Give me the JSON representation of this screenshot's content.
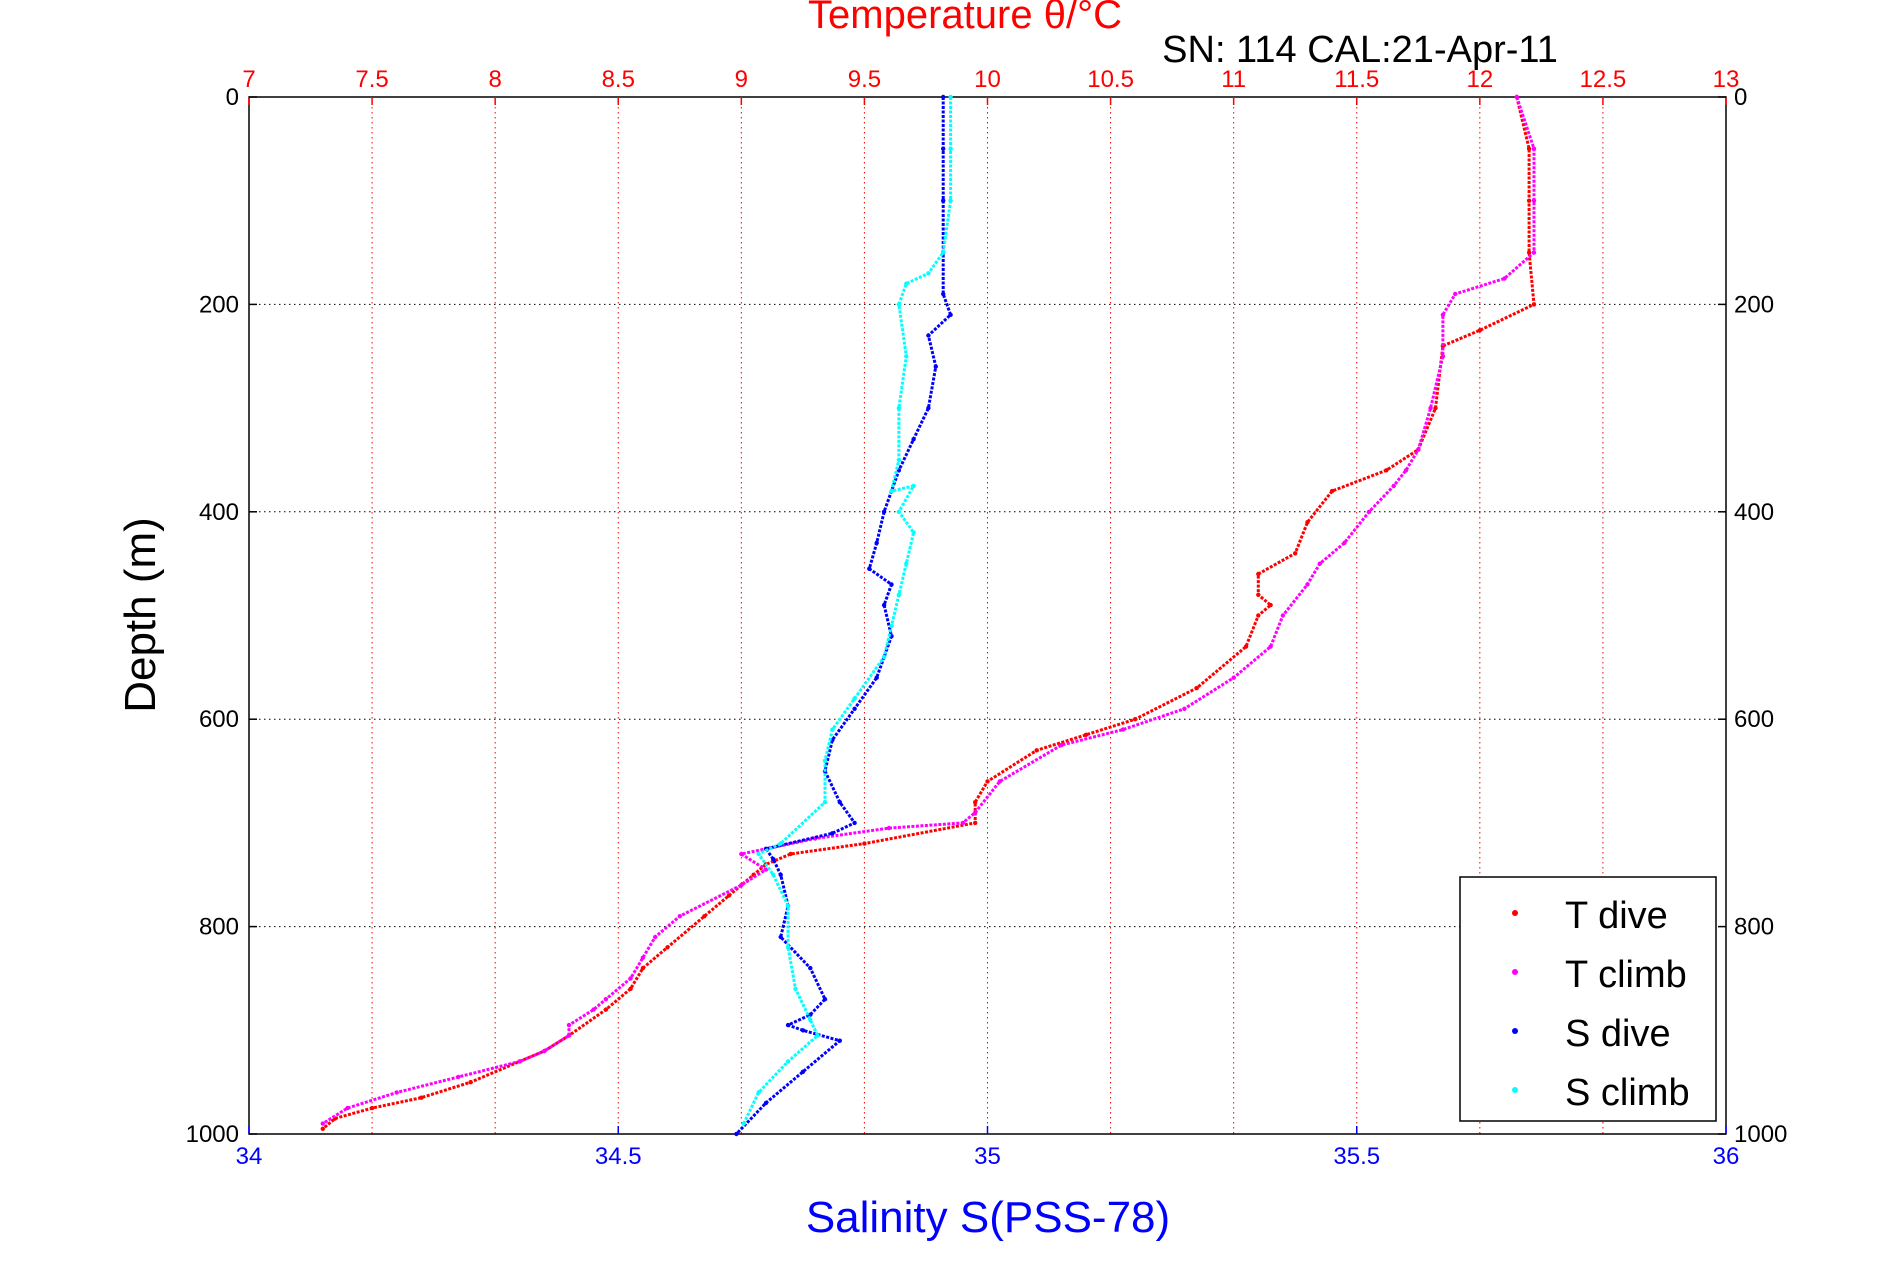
{
  "chart_data": {
    "type": "scatter",
    "title": "Temperature θ/°C",
    "annotation": "SN: 114  CAL:21-Apr-11",
    "ylabel": "Depth (m)",
    "xlabel_bottom": "Salinity S(PSS-78)",
    "xlabel_top": "",
    "y_axis": {
      "range": [
        0,
        1000
      ],
      "reversed": true,
      "ticks": [
        0,
        200,
        400,
        600,
        800,
        1000
      ],
      "tick_labels": [
        "0",
        "200",
        "400",
        "600",
        "800",
        "1000"
      ]
    },
    "x_bottom": {
      "name": "Salinity",
      "range": [
        34,
        36
      ],
      "ticks": [
        34,
        34.5,
        35,
        35.5,
        36
      ],
      "tick_labels": [
        "34",
        "34.5",
        "35",
        "35.5",
        "36"
      ],
      "color": "#0000ff"
    },
    "x_top": {
      "name": "Temperature",
      "range": [
        7,
        13
      ],
      "ticks": [
        7,
        7.5,
        8,
        8.5,
        9,
        9.5,
        10,
        10.5,
        11,
        11.5,
        12,
        12.5,
        13
      ],
      "tick_labels": [
        "7",
        "7.5",
        "8",
        "8.5",
        "9",
        "9.5",
        "10",
        "10.5",
        "11",
        "11.5",
        "12",
        "12.5",
        "13"
      ],
      "color": "#ff0000"
    },
    "grid": true,
    "legend_position": "bottom-right",
    "series": [
      {
        "name": "T dive",
        "axis": "top",
        "color": "#ff0000",
        "points": [
          [
            12.15,
            0
          ],
          [
            12.2,
            50
          ],
          [
            12.2,
            100
          ],
          [
            12.2,
            150
          ],
          [
            12.22,
            200
          ],
          [
            12.0,
            225
          ],
          [
            11.85,
            240
          ],
          [
            11.82,
            300
          ],
          [
            11.75,
            340
          ],
          [
            11.62,
            360
          ],
          [
            11.4,
            380
          ],
          [
            11.3,
            410
          ],
          [
            11.25,
            440
          ],
          [
            11.1,
            460
          ],
          [
            11.1,
            480
          ],
          [
            11.15,
            490
          ],
          [
            11.1,
            500
          ],
          [
            11.05,
            530
          ],
          [
            10.85,
            570
          ],
          [
            10.6,
            600
          ],
          [
            10.4,
            615
          ],
          [
            10.2,
            630
          ],
          [
            10.0,
            660
          ],
          [
            9.95,
            680
          ],
          [
            9.95,
            700
          ],
          [
            9.5,
            720
          ],
          [
            9.2,
            730
          ],
          [
            9.1,
            740
          ],
          [
            9.05,
            750
          ],
          [
            8.95,
            770
          ],
          [
            8.85,
            790
          ],
          [
            8.7,
            820
          ],
          [
            8.6,
            840
          ],
          [
            8.55,
            860
          ],
          [
            8.45,
            880
          ],
          [
            8.3,
            905
          ],
          [
            8.2,
            920
          ],
          [
            8.1,
            930
          ],
          [
            7.9,
            950
          ],
          [
            7.7,
            965
          ],
          [
            7.5,
            975
          ],
          [
            7.35,
            985
          ],
          [
            7.3,
            995
          ]
        ]
      },
      {
        "name": "T climb",
        "axis": "top",
        "color": "#ff00ff",
        "points": [
          [
            12.15,
            0
          ],
          [
            12.22,
            50
          ],
          [
            12.22,
            100
          ],
          [
            12.22,
            150
          ],
          [
            12.1,
            175
          ],
          [
            11.9,
            190
          ],
          [
            11.85,
            210
          ],
          [
            11.85,
            250
          ],
          [
            11.8,
            300
          ],
          [
            11.75,
            340
          ],
          [
            11.7,
            360
          ],
          [
            11.65,
            375
          ],
          [
            11.55,
            400
          ],
          [
            11.45,
            430
          ],
          [
            11.35,
            450
          ],
          [
            11.3,
            470
          ],
          [
            11.2,
            500
          ],
          [
            11.15,
            530
          ],
          [
            11.0,
            560
          ],
          [
            10.8,
            590
          ],
          [
            10.55,
            610
          ],
          [
            10.3,
            625
          ],
          [
            10.05,
            660
          ],
          [
            9.95,
            690
          ],
          [
            9.9,
            700
          ],
          [
            9.6,
            705
          ],
          [
            9.3,
            715
          ],
          [
            9.0,
            730
          ],
          [
            9.1,
            745
          ],
          [
            9.0,
            760
          ],
          [
            8.75,
            790
          ],
          [
            8.65,
            810
          ],
          [
            8.6,
            830
          ],
          [
            8.55,
            850
          ],
          [
            8.45,
            870
          ],
          [
            8.4,
            880
          ],
          [
            8.3,
            895
          ],
          [
            8.3,
            905
          ],
          [
            8.2,
            920
          ],
          [
            8.1,
            930
          ],
          [
            7.85,
            945
          ],
          [
            7.6,
            960
          ],
          [
            7.4,
            975
          ],
          [
            7.3,
            990
          ]
        ]
      },
      {
        "name": "S dive",
        "axis": "bottom",
        "color": "#0000ff",
        "points": [
          [
            34.94,
            0
          ],
          [
            34.94,
            50
          ],
          [
            34.94,
            100
          ],
          [
            34.94,
            150
          ],
          [
            34.94,
            190
          ],
          [
            34.95,
            210
          ],
          [
            34.92,
            230
          ],
          [
            34.93,
            260
          ],
          [
            34.92,
            300
          ],
          [
            34.9,
            330
          ],
          [
            34.88,
            360
          ],
          [
            34.86,
            400
          ],
          [
            34.85,
            430
          ],
          [
            34.84,
            455
          ],
          [
            34.87,
            470
          ],
          [
            34.86,
            490
          ],
          [
            34.87,
            520
          ],
          [
            34.85,
            560
          ],
          [
            34.82,
            590
          ],
          [
            34.79,
            620
          ],
          [
            34.78,
            650
          ],
          [
            34.8,
            680
          ],
          [
            34.82,
            700
          ],
          [
            34.79,
            710
          ],
          [
            34.7,
            725
          ],
          [
            34.71,
            735
          ],
          [
            34.72,
            750
          ],
          [
            34.73,
            780
          ],
          [
            34.72,
            810
          ],
          [
            34.76,
            840
          ],
          [
            34.78,
            870
          ],
          [
            34.76,
            885
          ],
          [
            34.73,
            895
          ],
          [
            34.75,
            900
          ],
          [
            34.8,
            910
          ],
          [
            34.75,
            940
          ],
          [
            34.7,
            970
          ],
          [
            34.66,
            1000
          ]
        ]
      },
      {
        "name": "S climb",
        "axis": "bottom",
        "color": "#00ffff",
        "points": [
          [
            34.95,
            0
          ],
          [
            34.95,
            50
          ],
          [
            34.95,
            100
          ],
          [
            34.94,
            150
          ],
          [
            34.92,
            170
          ],
          [
            34.89,
            180
          ],
          [
            34.88,
            200
          ],
          [
            34.89,
            250
          ],
          [
            34.88,
            300
          ],
          [
            34.88,
            350
          ],
          [
            34.87,
            380
          ],
          [
            34.9,
            375
          ],
          [
            34.88,
            400
          ],
          [
            34.9,
            420
          ],
          [
            34.89,
            450
          ],
          [
            34.88,
            480
          ],
          [
            34.87,
            510
          ],
          [
            34.86,
            540
          ],
          [
            34.82,
            580
          ],
          [
            34.79,
            610
          ],
          [
            34.78,
            640
          ],
          [
            34.78,
            680
          ],
          [
            34.72,
            720
          ],
          [
            34.69,
            730
          ],
          [
            34.71,
            750
          ],
          [
            34.73,
            780
          ],
          [
            34.73,
            820
          ],
          [
            34.74,
            860
          ],
          [
            34.76,
            890
          ],
          [
            34.77,
            905
          ],
          [
            34.73,
            930
          ],
          [
            34.69,
            960
          ],
          [
            34.67,
            990
          ]
        ]
      }
    ]
  }
}
